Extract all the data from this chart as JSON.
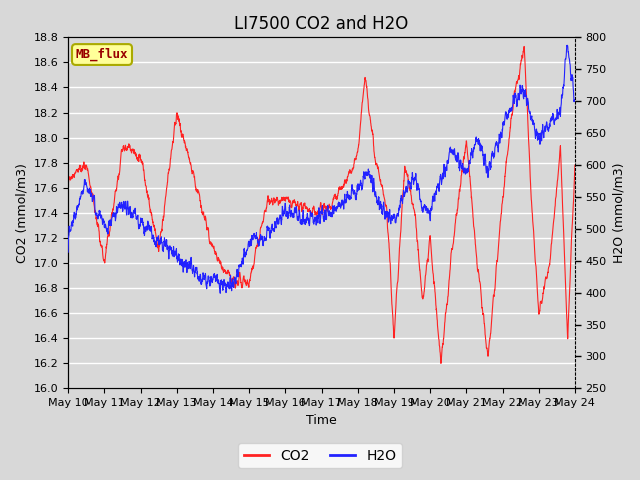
{
  "title": "LI7500 CO2 and H2O",
  "xlabel": "Time",
  "ylabel_left": "CO2 (mmol/m3)",
  "ylabel_right": "H2O (mmol/m3)",
  "co2_ylim": [
    16.0,
    18.8
  ],
  "h2o_ylim": [
    250,
    800
  ],
  "co2_yticks": [
    16.0,
    16.2,
    16.4,
    16.6,
    16.8,
    17.0,
    17.2,
    17.4,
    17.6,
    17.8,
    18.0,
    18.2,
    18.4,
    18.6,
    18.8
  ],
  "h2o_yticks": [
    250,
    300,
    350,
    400,
    450,
    500,
    550,
    600,
    650,
    700,
    750,
    800
  ],
  "x_tick_labels": [
    "May 10",
    "May 11",
    "May 12",
    "May 13",
    "May 14",
    "May 15",
    "May 16",
    "May 17",
    "May 18",
    "May 19",
    "May 20",
    "May 21",
    "May 22",
    "May 23",
    "May 24"
  ],
  "co2_color": "#FF2222",
  "h2o_color": "#2222FF",
  "background_color": "#D8D8D8",
  "plot_bg_color": "#D8D8D8",
  "grid_color": "#FFFFFF",
  "annotation_text": "MB_flux",
  "annotation_bg": "#FFFF99",
  "annotation_border": "#AAAA00",
  "annotation_text_color": "#990000",
  "legend_co2_label": "CO2",
  "legend_h2o_label": "H2O",
  "title_fontsize": 12,
  "axis_fontsize": 9,
  "tick_fontsize": 8,
  "figsize": [
    6.4,
    4.8
  ],
  "dpi": 100
}
